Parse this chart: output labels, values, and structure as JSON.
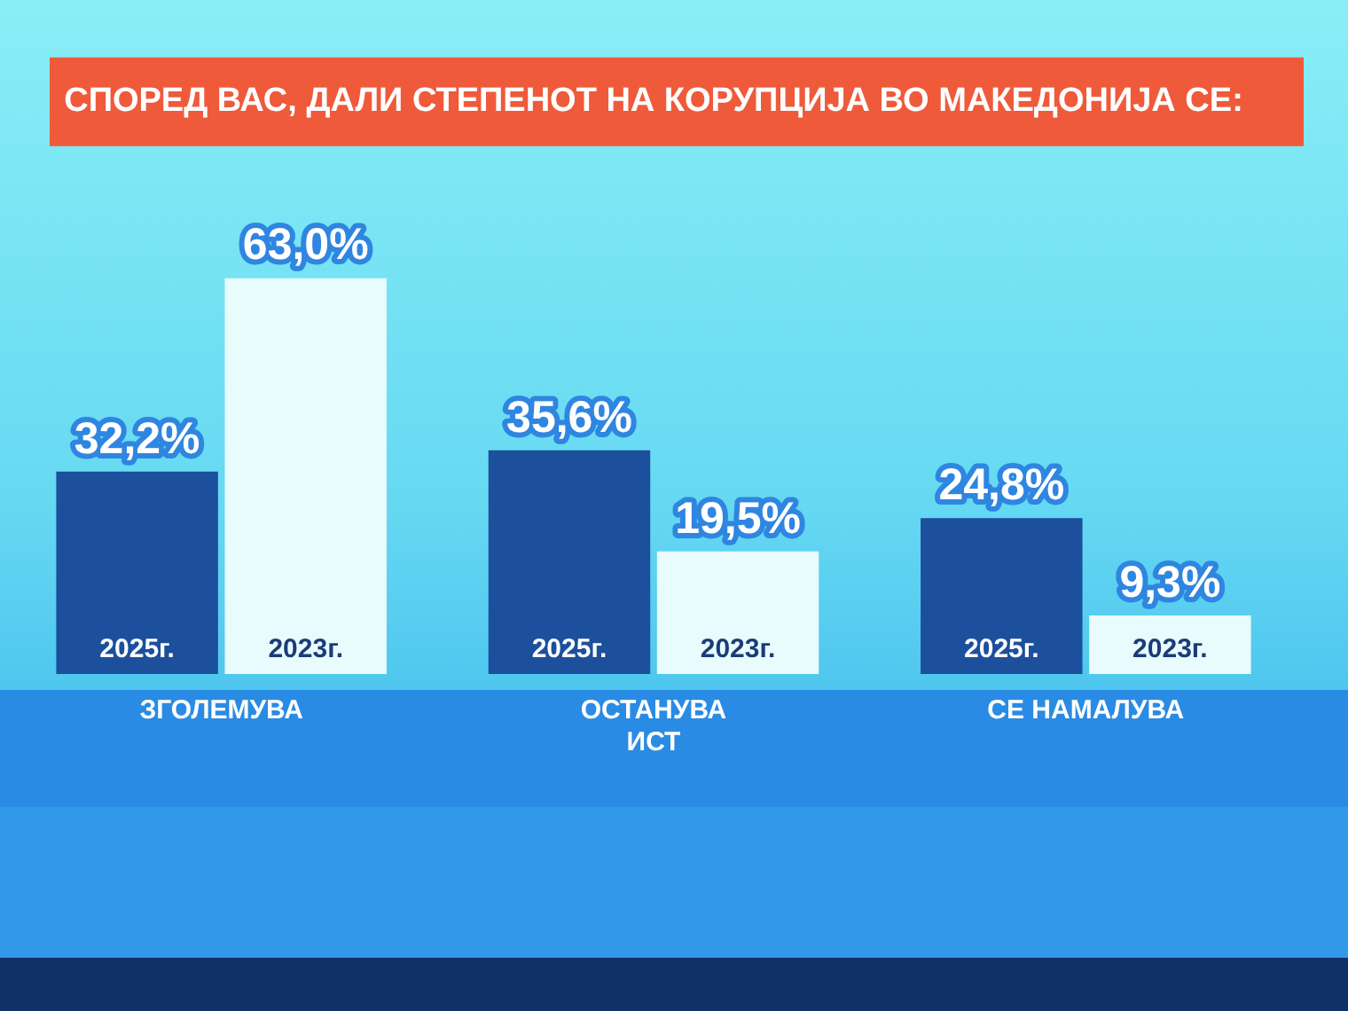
{
  "chart_data": {
    "type": "bar",
    "title": "СПОРЕД ВАС, ДАЛИ СТЕПЕНОТ НА КОРУПЦИЈА ВО МАКЕДОНИЈА СЕ:",
    "categories": [
      "ЗГОЛЕМУВА",
      "ОСТАНУВА\nИСТ",
      "СЕ НАМАЛУВА"
    ],
    "series": [
      {
        "name": "2025г.",
        "color": "#1c4f9c",
        "values": [
          32.2,
          35.6,
          24.8
        ],
        "value_labels": [
          "32,2%",
          "35,6%",
          "24,8%"
        ]
      },
      {
        "name": "2023г.",
        "color": "#e8fbfd",
        "values": [
          63.0,
          19.5,
          9.3
        ],
        "value_labels": [
          "63,0%",
          "19,5%",
          "9,3%"
        ]
      }
    ]
  }
}
